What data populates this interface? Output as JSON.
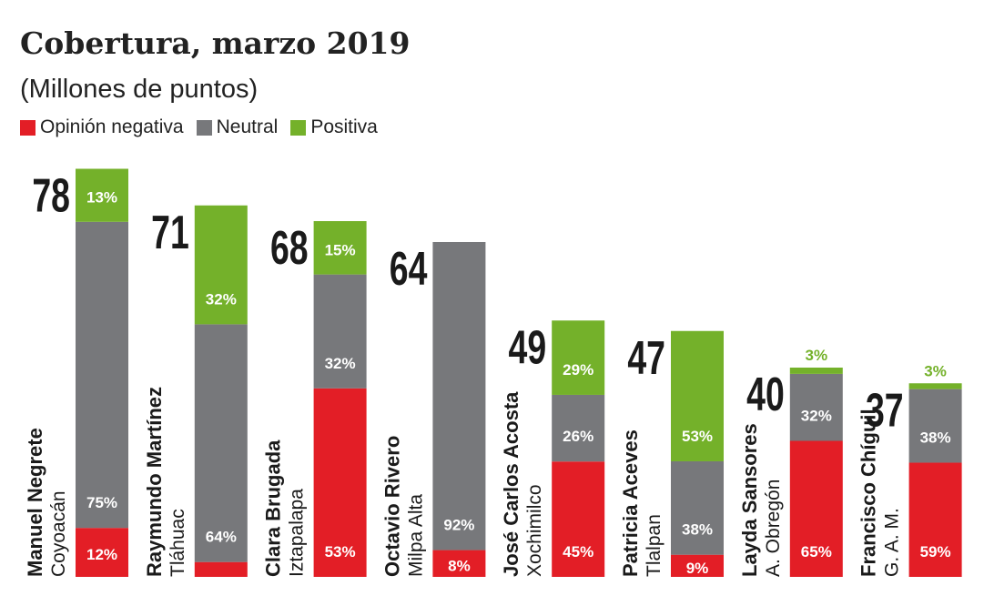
{
  "chart_data": {
    "type": "bar",
    "stacked": true,
    "title": "Cobertura, marzo 2019",
    "subtitle": "(Millones de puntos)",
    "legend": [
      {
        "name": "Opinión negativa",
        "color": "#e31e26"
      },
      {
        "name": "Neutral",
        "color": "#77787b"
      },
      {
        "name": "Positiva",
        "color": "#74b12a"
      }
    ],
    "legend_placement": "top-left",
    "bars": [
      {
        "name": "Manuel Negrete",
        "region": "Coyoacán",
        "total": 78,
        "negativa": 12,
        "neutral": 75,
        "positiva": 13
      },
      {
        "name": "Raymundo Martínez",
        "region": "Tláhuac",
        "total": 71,
        "negativa": 4,
        "neutral": 64,
        "positiva": 32
      },
      {
        "name": "Clara Brugada",
        "region": "Iztapalapa",
        "total": 68,
        "negativa": 53,
        "neutral": 32,
        "positiva": 15
      },
      {
        "name": "Octavio Rivero",
        "region": "Milpa Alta",
        "total": 64,
        "negativa": 8,
        "neutral": 92,
        "positiva": 0
      },
      {
        "name": "José Carlos Acosta",
        "region": "Xochimilco",
        "total": 49,
        "negativa": 45,
        "neutral": 26,
        "positiva": 29
      },
      {
        "name": "Patricia Aceves",
        "region": "Tlalpan",
        "total": 47,
        "negativa": 9,
        "neutral": 38,
        "positiva": 53
      },
      {
        "name": "Layda Sansores",
        "region": "A. Obregón",
        "total": 40,
        "negativa": 65,
        "neutral": 32,
        "positiva": 3
      },
      {
        "name": "Francisco Chíguil",
        "region": "G. A. M.",
        "total": 37,
        "negativa": 59,
        "neutral": 38,
        "positiva": 3
      }
    ],
    "units": "Millones de puntos; segments in % of total",
    "grid": false
  }
}
